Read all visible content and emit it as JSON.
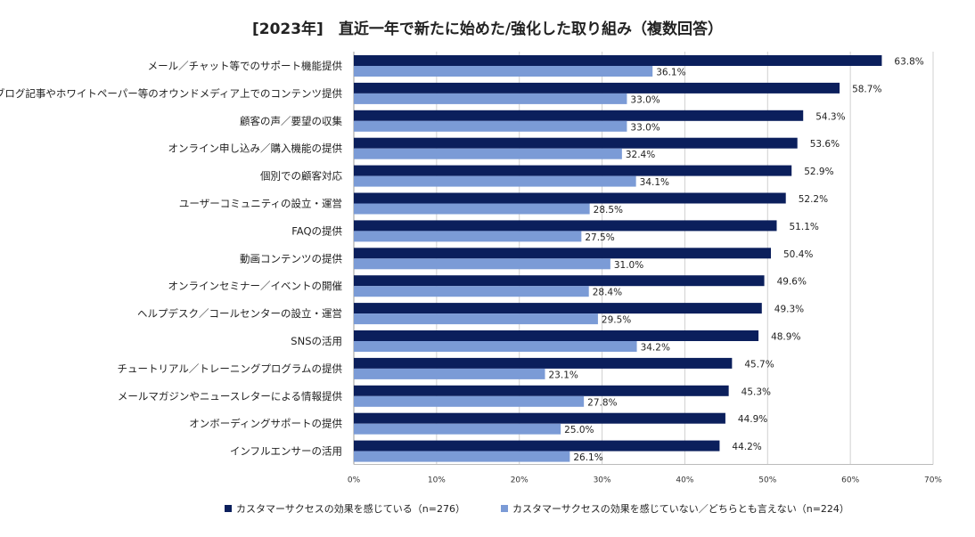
{
  "chart_data": {
    "type": "bar",
    "orientation": "horizontal",
    "title": "[2023年]　直近一年で新たに始めた/強化した取り組み（複数回答）",
    "categories": [
      "メール／チャット等でのサポート機能提供",
      "ブログ記事やホワイトペーパー等のオウンドメディア上でのコンテンツ提供",
      "顧客の声／要望の収集",
      "オンライン申し込み／購入機能の提供",
      "個別での顧客対応",
      "ユーザーコミュニティの設立・運営",
      "FAQの提供",
      "動画コンテンツの提供",
      "オンラインセミナー／イベントの開催",
      "ヘルプデスク／コールセンターの設立・運営",
      "SNSの活用",
      "チュートリアル／トレーニングプログラムの提供",
      "メールマガジンやニュースレターによる情報提供",
      "オンボーディングサポートの提供",
      "インフルエンサーの活用"
    ],
    "series": [
      {
        "name": "カスタマーサクセスの効果を感じている（n=276）",
        "color": "#0b1f5c",
        "values": [
          63.8,
          58.7,
          54.3,
          53.6,
          52.9,
          52.2,
          51.1,
          50.4,
          49.6,
          49.3,
          48.9,
          45.7,
          45.3,
          44.9,
          44.2
        ],
        "labels": [
          "63.8%",
          "58.7%",
          "54.3%",
          "53.6%",
          "52.9%",
          "52.2%",
          "51.1%",
          "50.4%",
          "49.6%",
          "49.3%",
          "48.9%",
          "45.7%",
          "45.3%",
          "44.9%",
          "44.2%"
        ]
      },
      {
        "name": "カスタマーサクセスの効果を感じていない／どちらとも言えない（n=224）",
        "color": "#7b9bd6",
        "values": [
          36.1,
          33.0,
          33.0,
          32.4,
          34.1,
          28.5,
          27.5,
          31.0,
          28.4,
          29.5,
          34.2,
          23.1,
          27.8,
          25.0,
          26.1
        ],
        "labels": [
          "36.1%",
          "33.0%",
          "33.0%",
          "32.4%",
          "34.1%",
          "28.5%",
          "27.5%",
          "31.0%",
          "28.4%",
          "29.5%",
          "34.2%",
          "23.1%",
          "27.8%",
          "25.0%",
          "26.1%"
        ]
      }
    ],
    "xlim": [
      0,
      70
    ],
    "xticks": [
      0,
      10,
      20,
      30,
      40,
      50,
      60,
      70
    ],
    "xtick_labels": [
      "0%",
      "10%",
      "20%",
      "30%",
      "40%",
      "50%",
      "60%",
      "70%"
    ],
    "grid": true,
    "legend_position": "bottom"
  }
}
